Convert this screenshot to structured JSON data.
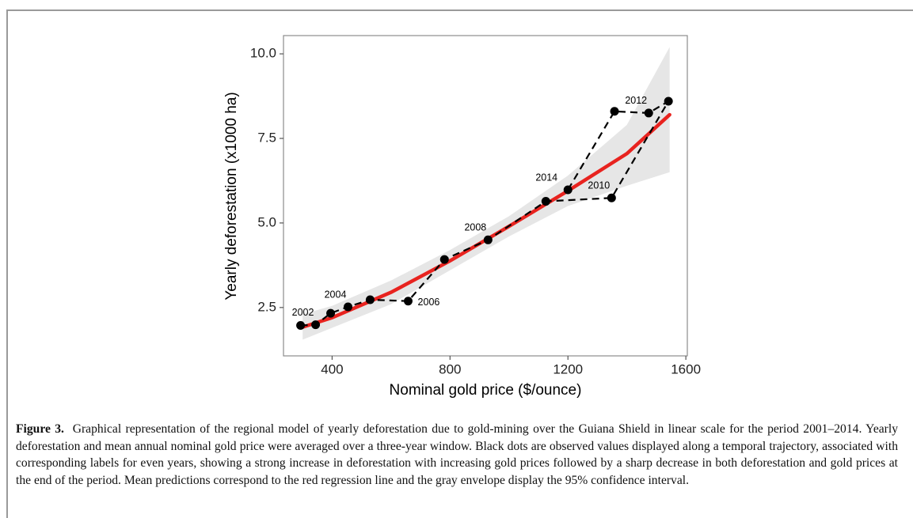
{
  "chart_data": {
    "type": "scatter",
    "x_label": "Nominal gold price ($/ounce)",
    "y_label": "Yearly deforestation (x1000 ha)",
    "xlim": [
      235,
      1605
    ],
    "ylim": [
      1.07,
      10.54
    ],
    "xticks": [
      400,
      800,
      1200,
      1600
    ],
    "yticks": [
      2.5,
      {
        "value": 5,
        "label": "5.0"
      },
      7.5,
      {
        "value": 10,
        "label": "10.0"
      }
    ],
    "band": {
      "color": "#e6e6e6",
      "x": [
        300,
        400,
        600,
        800,
        1000,
        1200,
        1400,
        1545
      ],
      "lower": [
        1.55,
        1.9,
        2.6,
        3.6,
        4.6,
        5.5,
        6.1,
        6.5
      ],
      "upper": [
        2.3,
        2.55,
        3.3,
        4.2,
        5.2,
        6.4,
        7.9,
        10.2
      ]
    },
    "fit": {
      "color": "#e8231f",
      "x": [
        300,
        400,
        600,
        800,
        1000,
        1200,
        1400,
        1545
      ],
      "values": [
        1.92,
        2.2,
        2.95,
        3.88,
        4.9,
        5.95,
        7.05,
        8.2
      ]
    },
    "points": {
      "color": "#000000",
      "x": [
        293,
        344,
        395,
        454,
        529,
        658,
        781,
        929,
        1125,
        1348,
        1541,
        1474,
        1358,
        1200
      ],
      "values": [
        1.97,
        1.99,
        2.33,
        2.52,
        2.73,
        2.69,
        3.92,
        4.5,
        5.64,
        5.74,
        8.6,
        8.25,
        8.3,
        5.98
      ],
      "point_labels": [
        null,
        "2002",
        null,
        "2004",
        null,
        "2006",
        null,
        "2008",
        null,
        "2010",
        null,
        "2012",
        null,
        "2014"
      ]
    }
  },
  "caption": {
    "label": "Figure 3.",
    "text": "Graphical representation of the regional model of yearly deforestation due to gold-mining over the Guiana Shield in linear scale for the period 2001–2014. Yearly deforestation and mean annual nominal gold price were averaged over a three-year window. Black dots are observed values displayed along a temporal trajectory, associated with corresponding labels for even years, showing a strong increase in deforestation with increasing gold prices followed by a sharp decrease in both deforestation and gold prices at the end of the period. Mean predictions correspond to the red regression line and the gray envelope display the 95% confidence interval."
  }
}
